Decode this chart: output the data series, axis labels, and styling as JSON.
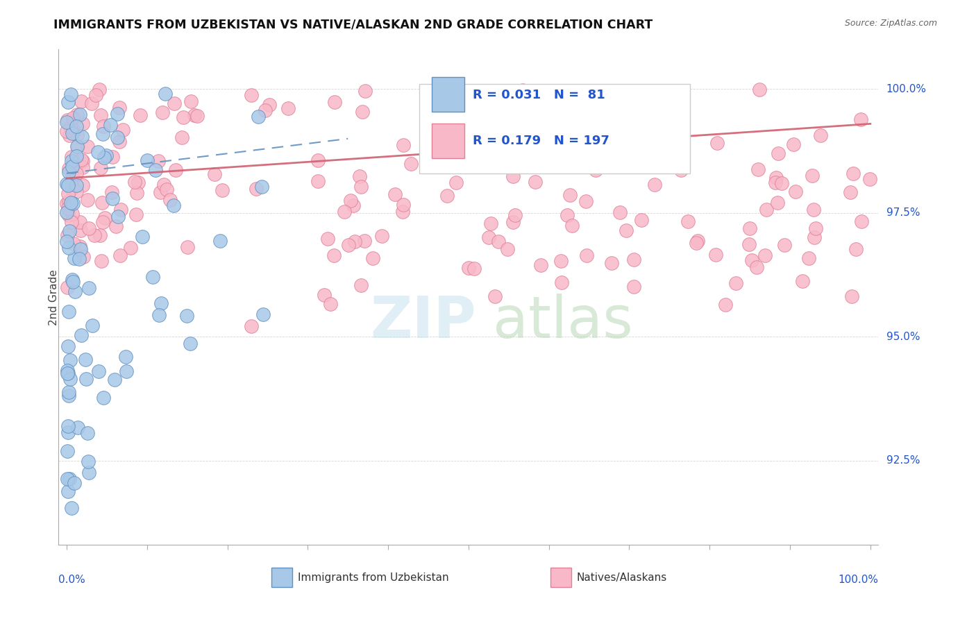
{
  "title": "IMMIGRANTS FROM UZBEKISTAN VS NATIVE/ALASKAN 2ND GRADE CORRELATION CHART",
  "source": "Source: ZipAtlas.com",
  "ylabel": "2nd Grade",
  "blue_R": 0.031,
  "blue_N": 81,
  "pink_R": 0.179,
  "pink_N": 197,
  "blue_color": "#a8c8e8",
  "blue_edge": "#6090c0",
  "pink_color": "#f8b8c8",
  "pink_edge": "#e08098",
  "trend_blue_color": "#6090c0",
  "trend_pink_color": "#d06070",
  "legend_R_N_color": "#2255cc",
  "right_label_color": "#2255cc",
  "xlim": [
    -0.01,
    1.01
  ],
  "ylim": [
    90.8,
    100.8
  ],
  "grid_color": "#cccccc",
  "right_yticks": [
    92.5,
    95.0,
    97.5,
    100.0
  ],
  "right_ylabels": [
    "92.5%",
    "95.0%",
    "97.5%",
    "100.0%"
  ],
  "marker_size": 200,
  "blue_scatter_seed": 42,
  "pink_scatter_seed": 99
}
